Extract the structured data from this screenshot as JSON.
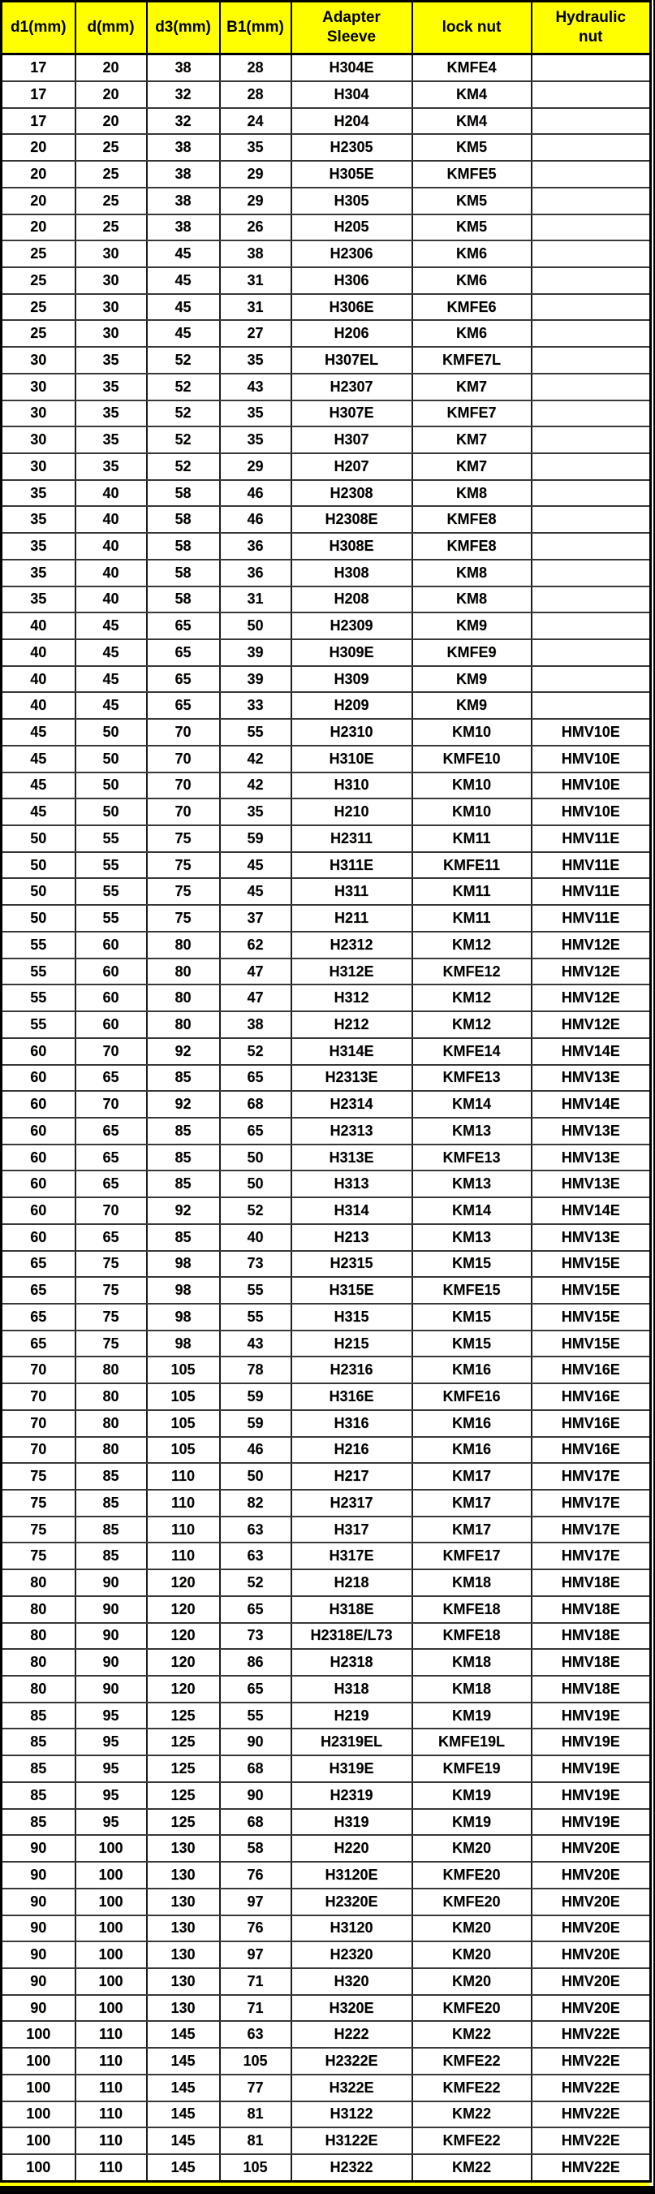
{
  "colors": {
    "header_bg": "#ffff00",
    "body_bg": "#ffffff",
    "text": "#000000",
    "border": "#000000"
  },
  "table": {
    "columns": [
      "d1(mm)",
      "d(mm)",
      "d3(mm)",
      "B1(mm)",
      "Adapter\nSleeve",
      "lock nut",
      "Hydraulic\nnut"
    ],
    "rows": [
      [
        "17",
        "20",
        "38",
        "28",
        "H304E",
        "KMFE4",
        ""
      ],
      [
        "17",
        "20",
        "32",
        "28",
        "H304",
        "KM4",
        ""
      ],
      [
        "17",
        "20",
        "32",
        "24",
        "H204",
        "KM4",
        ""
      ],
      [
        "20",
        "25",
        "38",
        "35",
        "H2305",
        "KM5",
        ""
      ],
      [
        "20",
        "25",
        "38",
        "29",
        "H305E",
        "KMFE5",
        ""
      ],
      [
        "20",
        "25",
        "38",
        "29",
        "H305",
        "KM5",
        ""
      ],
      [
        "20",
        "25",
        "38",
        "26",
        "H205",
        "KM5",
        ""
      ],
      [
        "25",
        "30",
        "45",
        "38",
        "H2306",
        "KM6",
        ""
      ],
      [
        "25",
        "30",
        "45",
        "31",
        "H306",
        "KM6",
        ""
      ],
      [
        "25",
        "30",
        "45",
        "31",
        "H306E",
        "KMFE6",
        ""
      ],
      [
        "25",
        "30",
        "45",
        "27",
        "H206",
        "KM6",
        ""
      ],
      [
        "30",
        "35",
        "52",
        "35",
        "H307EL",
        "KMFE7L",
        ""
      ],
      [
        "30",
        "35",
        "52",
        "43",
        "H2307",
        "KM7",
        ""
      ],
      [
        "30",
        "35",
        "52",
        "35",
        "H307E",
        "KMFE7",
        ""
      ],
      [
        "30",
        "35",
        "52",
        "35",
        "H307",
        "KM7",
        ""
      ],
      [
        "30",
        "35",
        "52",
        "29",
        "H207",
        "KM7",
        ""
      ],
      [
        "35",
        "40",
        "58",
        "46",
        "H2308",
        "KM8",
        ""
      ],
      [
        "35",
        "40",
        "58",
        "46",
        "H2308E",
        "KMFE8",
        ""
      ],
      [
        "35",
        "40",
        "58",
        "36",
        "H308E",
        "KMFE8",
        ""
      ],
      [
        "35",
        "40",
        "58",
        "36",
        "H308",
        "KM8",
        ""
      ],
      [
        "35",
        "40",
        "58",
        "31",
        "H208",
        "KM8",
        ""
      ],
      [
        "40",
        "45",
        "65",
        "50",
        "H2309",
        "KM9",
        ""
      ],
      [
        "40",
        "45",
        "65",
        "39",
        "H309E",
        "KMFE9",
        ""
      ],
      [
        "40",
        "45",
        "65",
        "39",
        "H309",
        "KM9",
        ""
      ],
      [
        "40",
        "45",
        "65",
        "33",
        "H209",
        "KM9",
        ""
      ],
      [
        "45",
        "50",
        "70",
        "55",
        "H2310",
        "KM10",
        "HMV10E"
      ],
      [
        "45",
        "50",
        "70",
        "42",
        "H310E",
        "KMFE10",
        "HMV10E"
      ],
      [
        "45",
        "50",
        "70",
        "42",
        "H310",
        "KM10",
        "HMV10E"
      ],
      [
        "45",
        "50",
        "70",
        "35",
        "H210",
        "KM10",
        "HMV10E"
      ],
      [
        "50",
        "55",
        "75",
        "59",
        "H2311",
        "KM11",
        "HMV11E"
      ],
      [
        "50",
        "55",
        "75",
        "45",
        "H311E",
        "KMFE11",
        "HMV11E"
      ],
      [
        "50",
        "55",
        "75",
        "45",
        "H311",
        "KM11",
        "HMV11E"
      ],
      [
        "50",
        "55",
        "75",
        "37",
        "H211",
        "KM11",
        "HMV11E"
      ],
      [
        "55",
        "60",
        "80",
        "62",
        "H2312",
        "KM12",
        "HMV12E"
      ],
      [
        "55",
        "60",
        "80",
        "47",
        "H312E",
        "KMFE12",
        "HMV12E"
      ],
      [
        "55",
        "60",
        "80",
        "47",
        "H312",
        "KM12",
        "HMV12E"
      ],
      [
        "55",
        "60",
        "80",
        "38",
        "H212",
        "KM12",
        "HMV12E"
      ],
      [
        "60",
        "70",
        "92",
        "52",
        "H314E",
        "KMFE14",
        "HMV14E"
      ],
      [
        "60",
        "65",
        "85",
        "65",
        "H2313E",
        "KMFE13",
        "HMV13E"
      ],
      [
        "60",
        "70",
        "92",
        "68",
        "H2314",
        "KM14",
        "HMV14E"
      ],
      [
        "60",
        "65",
        "85",
        "65",
        "H2313",
        "KM13",
        "HMV13E"
      ],
      [
        "60",
        "65",
        "85",
        "50",
        "H313E",
        "KMFE13",
        "HMV13E"
      ],
      [
        "60",
        "65",
        "85",
        "50",
        "H313",
        "KM13",
        "HMV13E"
      ],
      [
        "60",
        "70",
        "92",
        "52",
        "H314",
        "KM14",
        "HMV14E"
      ],
      [
        "60",
        "65",
        "85",
        "40",
        "H213",
        "KM13",
        "HMV13E"
      ],
      [
        "65",
        "75",
        "98",
        "73",
        "H2315",
        "KM15",
        "HMV15E"
      ],
      [
        "65",
        "75",
        "98",
        "55",
        "H315E",
        "KMFE15",
        "HMV15E"
      ],
      [
        "65",
        "75",
        "98",
        "55",
        "H315",
        "KM15",
        "HMV15E"
      ],
      [
        "65",
        "75",
        "98",
        "43",
        "H215",
        "KM15",
        "HMV15E"
      ],
      [
        "70",
        "80",
        "105",
        "78",
        "H2316",
        "KM16",
        "HMV16E"
      ],
      [
        "70",
        "80",
        "105",
        "59",
        "H316E",
        "KMFE16",
        "HMV16E"
      ],
      [
        "70",
        "80",
        "105",
        "59",
        "H316",
        "KM16",
        "HMV16E"
      ],
      [
        "70",
        "80",
        "105",
        "46",
        "H216",
        "KM16",
        "HMV16E"
      ],
      [
        "75",
        "85",
        "110",
        "50",
        "H217",
        "KM17",
        "HMV17E"
      ],
      [
        "75",
        "85",
        "110",
        "82",
        "H2317",
        "KM17",
        "HMV17E"
      ],
      [
        "75",
        "85",
        "110",
        "63",
        "H317",
        "KM17",
        "HMV17E"
      ],
      [
        "75",
        "85",
        "110",
        "63",
        "H317E",
        "KMFE17",
        "HMV17E"
      ],
      [
        "80",
        "90",
        "120",
        "52",
        "H218",
        "KM18",
        "HMV18E"
      ],
      [
        "80",
        "90",
        "120",
        "65",
        "H318E",
        "KMFE18",
        "HMV18E"
      ],
      [
        "80",
        "90",
        "120",
        "73",
        "H2318E/L73",
        "KMFE18",
        "HMV18E"
      ],
      [
        "80",
        "90",
        "120",
        "86",
        "H2318",
        "KM18",
        "HMV18E"
      ],
      [
        "80",
        "90",
        "120",
        "65",
        "H318",
        "KM18",
        "HMV18E"
      ],
      [
        "85",
        "95",
        "125",
        "55",
        "H219",
        "KM19",
        "HMV19E"
      ],
      [
        "85",
        "95",
        "125",
        "90",
        "H2319EL",
        "KMFE19L",
        "HMV19E"
      ],
      [
        "85",
        "95",
        "125",
        "68",
        "H319E",
        "KMFE19",
        "HMV19E"
      ],
      [
        "85",
        "95",
        "125",
        "90",
        "H2319",
        "KM19",
        "HMV19E"
      ],
      [
        "85",
        "95",
        "125",
        "68",
        "H319",
        "KM19",
        "HMV19E"
      ],
      [
        "90",
        "100",
        "130",
        "58",
        "H220",
        "KM20",
        "HMV20E"
      ],
      [
        "90",
        "100",
        "130",
        "76",
        "H3120E",
        "KMFE20",
        "HMV20E"
      ],
      [
        "90",
        "100",
        "130",
        "97",
        "H2320E",
        "KMFE20",
        "HMV20E"
      ],
      [
        "90",
        "100",
        "130",
        "76",
        "H3120",
        "KM20",
        "HMV20E"
      ],
      [
        "90",
        "100",
        "130",
        "97",
        "H2320",
        "KM20",
        "HMV20E"
      ],
      [
        "90",
        "100",
        "130",
        "71",
        "H320",
        "KM20",
        "HMV20E"
      ],
      [
        "90",
        "100",
        "130",
        "71",
        "H320E",
        "KMFE20",
        "HMV20E"
      ],
      [
        "100",
        "110",
        "145",
        "63",
        "H222",
        "KM22",
        "HMV22E"
      ],
      [
        "100",
        "110",
        "145",
        "105",
        "H2322E",
        "KMFE22",
        "HMV22E"
      ],
      [
        "100",
        "110",
        "145",
        "77",
        "H322E",
        "KMFE22",
        "HMV22E"
      ],
      [
        "100",
        "110",
        "145",
        "81",
        "H3122",
        "KM22",
        "HMV22E"
      ],
      [
        "100",
        "110",
        "145",
        "81",
        "H3122E",
        "KMFE22",
        "HMV22E"
      ],
      [
        "100",
        "110",
        "145",
        "105",
        "H2322",
        "KM22",
        "HMV22E"
      ]
    ]
  }
}
